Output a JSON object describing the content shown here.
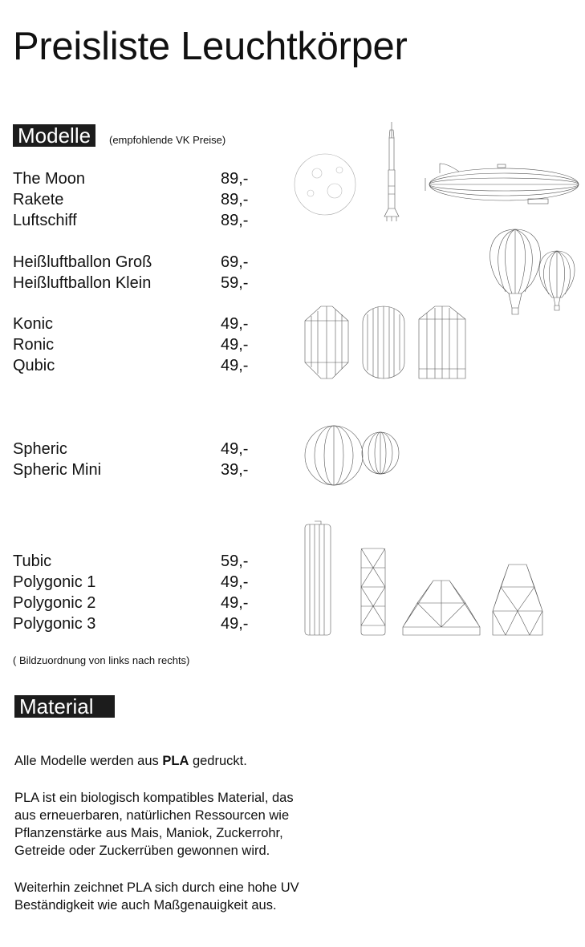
{
  "title": "Preisliste Leuchtkörper",
  "models_section": {
    "label": "Modelle",
    "note": "(empfohlende VK Preise)",
    "groups": [
      {
        "items": [
          {
            "name": "The Moon",
            "price": "89,-"
          },
          {
            "name": "Rakete",
            "price": "89,-"
          },
          {
            "name": "Luftschiff",
            "price": "89,-"
          }
        ]
      },
      {
        "items": [
          {
            "name": "Heißluftballon Groß",
            "price": "69,-"
          },
          {
            "name": "Heißluftballon Klein",
            "price": "59,-"
          }
        ]
      },
      {
        "items": [
          {
            "name": "Konic",
            "price": "49,-"
          },
          {
            "name": "Ronic",
            "price": "49,-"
          },
          {
            "name": "Qubic",
            "price": "49,-"
          }
        ]
      },
      {
        "items": [
          {
            "name": "Spheric",
            "price": "49,-"
          },
          {
            "name": "Spheric Mini",
            "price": "39,-"
          }
        ]
      },
      {
        "items": [
          {
            "name": "Tubic",
            "price": "59,-"
          },
          {
            "name": "Polygonic 1",
            "price": "49,-"
          },
          {
            "name": "Polygonic 2",
            "price": "49,-"
          },
          {
            "name": "Polygonic 3",
            "price": "49,-"
          }
        ]
      }
    ],
    "image_caption": "( Bildzuordnung von links nach rechts)"
  },
  "material_section": {
    "label": "Material",
    "p1_before": "Alle Modelle werden aus ",
    "p1_bold": "PLA",
    "p1_after": " gedruckt.",
    "p2_lines": [
      "PLA ist ein biologisch kompatibles Material, das",
      "aus erneuerbaren, natürlichen Ressourcen wie",
      "Pflanzenstärke aus Mais, Maniok, Zuckerrohr,",
      "Getreide oder Zuckerrüben gewonnen wird."
    ],
    "p3_lines": [
      "Weiterhin zeichnet PLA sich durch eine hohe UV",
      "Beständigkeit wie auch Maßgenauigkeit aus."
    ]
  }
}
